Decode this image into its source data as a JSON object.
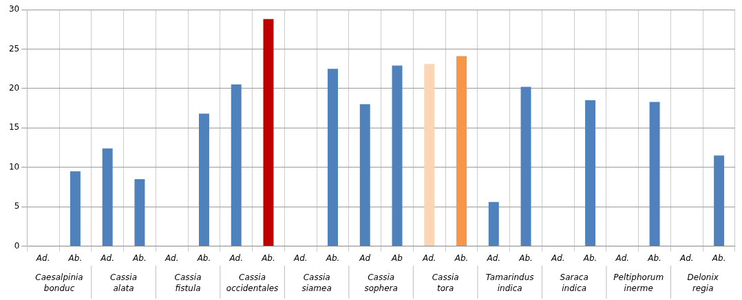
{
  "chart_data": {
    "type": "bar",
    "categories": [
      "Ad.",
      "Ab.",
      "Ad.",
      "Ab.",
      "Ad.",
      "Ab.",
      "Ad.",
      "Ab.",
      "Ad.",
      "Ab.",
      "Ad",
      "Ab",
      "Ad.",
      "Ab.",
      "Ad.",
      "Ab.",
      "Ad.",
      "Ab.",
      "Ad.",
      "Ab.",
      "Ad.",
      "Ab."
    ],
    "values": [
      0,
      9.5,
      12.4,
      8.5,
      0,
      16.8,
      20.5,
      28.8,
      0,
      22.5,
      18,
      22.9,
      23.1,
      24.1,
      5.6,
      20.2,
      0,
      18.5,
      0,
      18.3,
      0,
      11.5
    ],
    "colors": [
      "#4f81bd",
      "#4f81bd",
      "#4f81bd",
      "#4f81bd",
      "#4f81bd",
      "#4f81bd",
      "#4f81bd",
      "#c00000",
      "#4f81bd",
      "#4f81bd",
      "#4f81bd",
      "#4f81bd",
      "#fcd5b4",
      "#f79646",
      "#4f81bd",
      "#4f81bd",
      "#4f81bd",
      "#4f81bd",
      "#4f81bd",
      "#4f81bd",
      "#4f81bd",
      "#4f81bd"
    ],
    "annotations": [
      "Caesalpinia bonduc",
      "Cassia alata",
      "Cassia fistula",
      "Cassia occidentales",
      "Cassia siamea",
      "Cassia sophera",
      "Cassia tora",
      "Tamarindus indica",
      "Saraca indica",
      "Peltiphorum inerme",
      "Delonix regia"
    ],
    "ylim": [
      0,
      30
    ],
    "yticks": [
      0,
      5,
      10,
      15,
      20,
      25,
      30
    ],
    "grid": "y",
    "legend": false
  }
}
